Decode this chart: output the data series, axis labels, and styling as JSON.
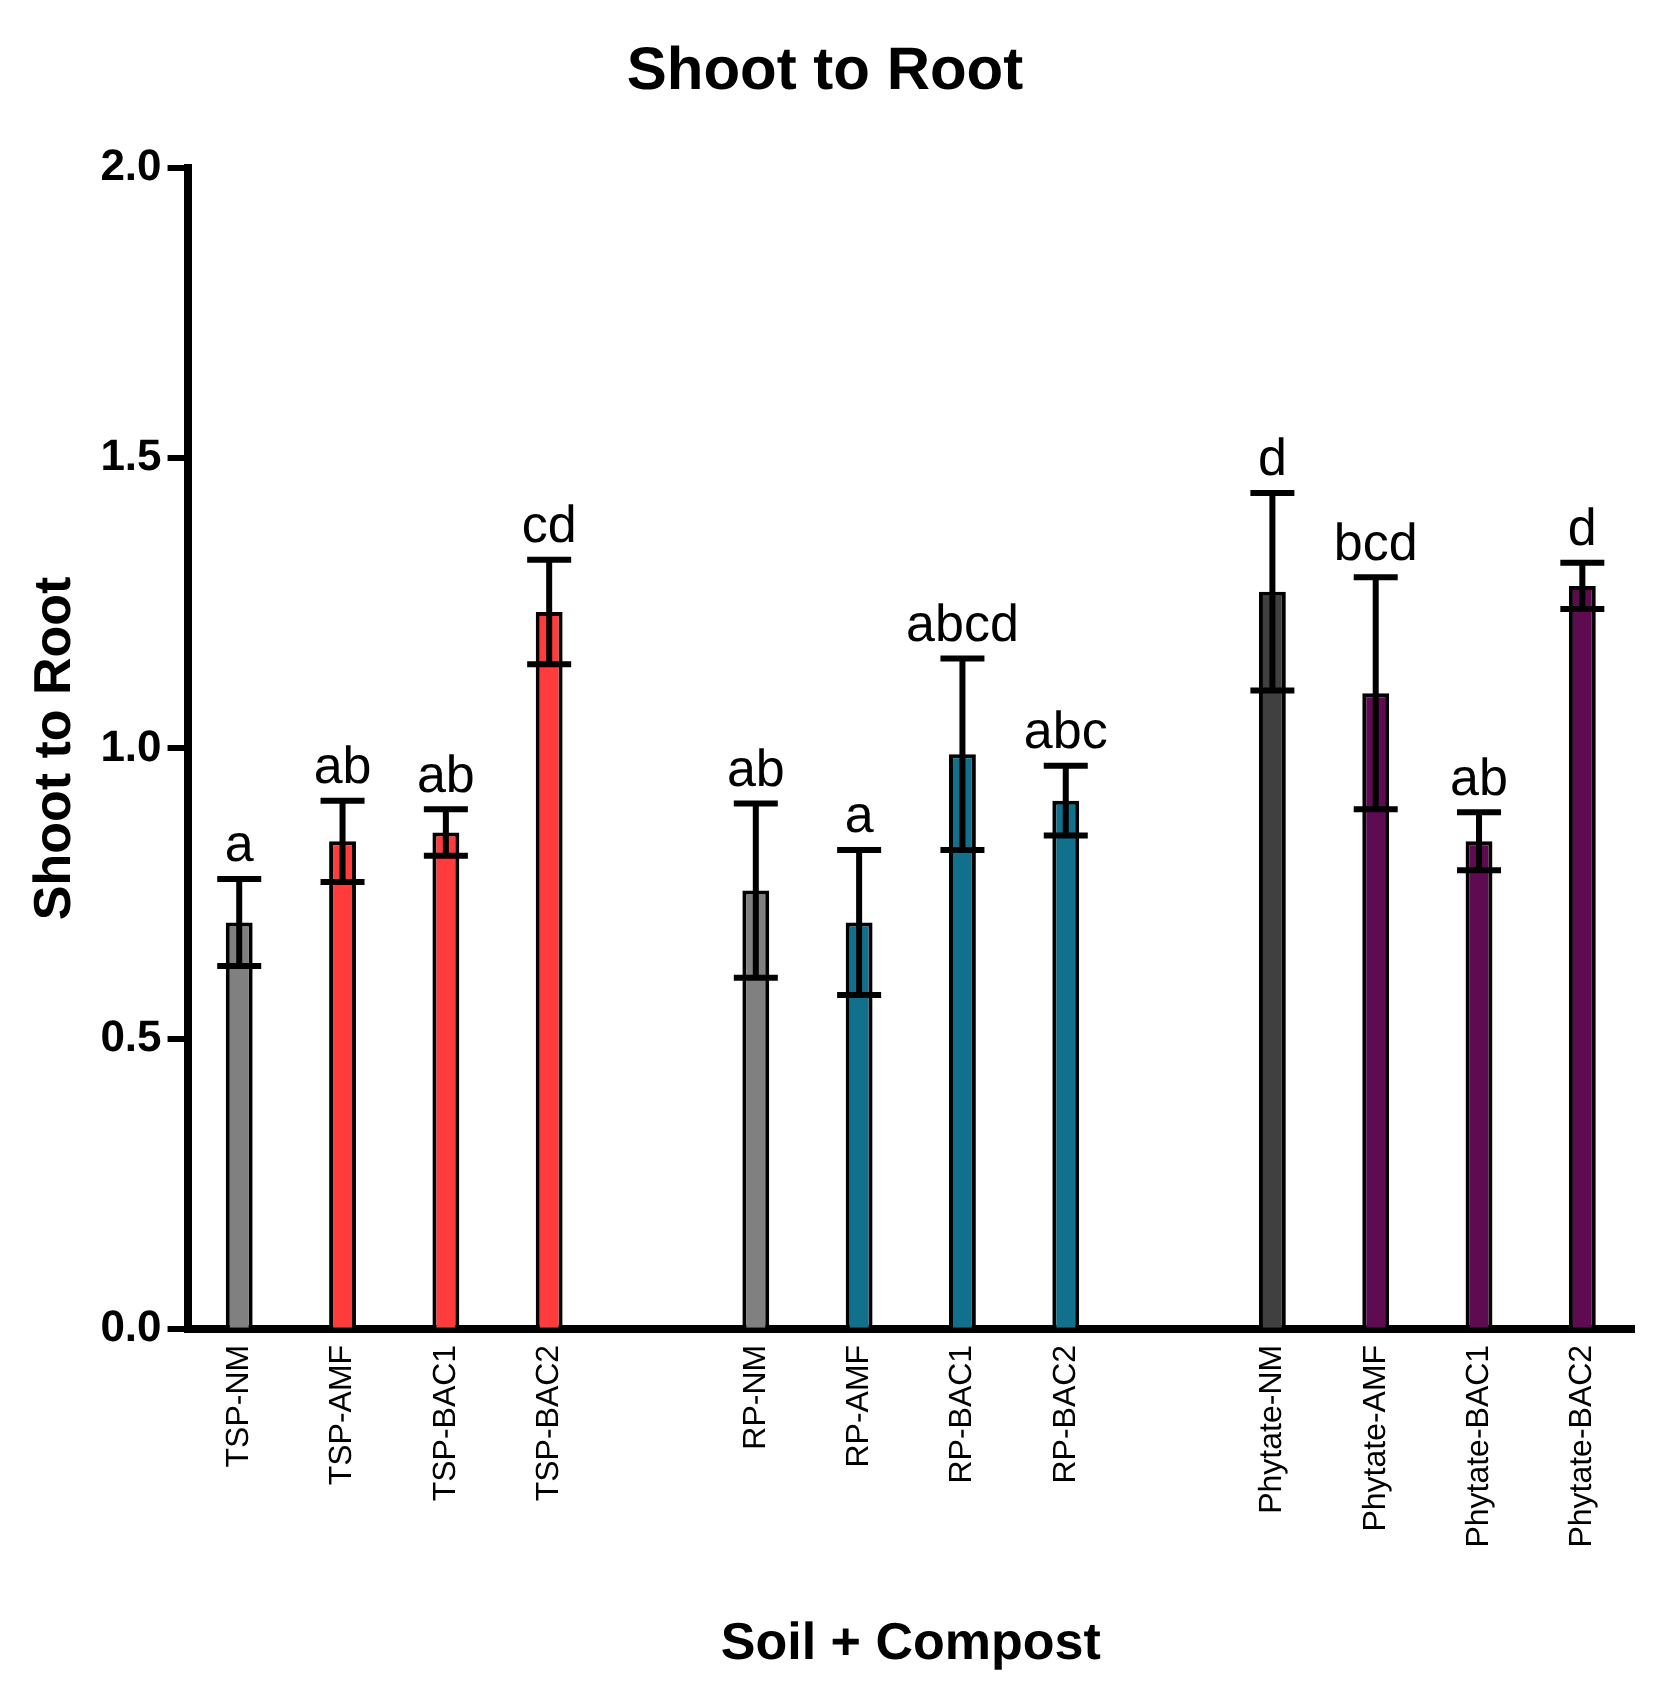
{
  "chart_data": {
    "type": "bar",
    "title": "Shoot to Root",
    "xlabel": "Soil + Compost",
    "ylabel": "Shoot to Root",
    "categories": [
      "TSP-NM",
      "TSP-AMF",
      "TSP-BAC1",
      "TSP-BAC2",
      null,
      "RP-NM",
      "RP-AMF",
      "RP-BAC1",
      "RP-BAC2",
      null,
      "Phytate-NM",
      "Phytate-AMF",
      "Phytate-BAC1",
      "Phytate-BAC2"
    ],
    "values": [
      0.7,
      0.84,
      0.855,
      1.235,
      null,
      0.755,
      0.7,
      0.99,
      0.91,
      null,
      1.27,
      1.095,
      0.84,
      1.28
    ],
    "errors": [
      0.075,
      0.07,
      0.04,
      0.09,
      null,
      0.15,
      0.125,
      0.165,
      0.06,
      null,
      0.17,
      0.2,
      0.05,
      0.04
    ],
    "colors": [
      "#808080",
      "#ff3b3b",
      "#ff3b3b",
      "#ff3b3b",
      null,
      "#808080",
      "#11718c",
      "#11718c",
      "#11718c",
      null,
      "#404040",
      "#5e0b52",
      "#5e0b52",
      "#5e0b52"
    ],
    "ylim": [
      0,
      2
    ],
    "yticks": [
      {
        "value": 0,
        "label": "0.0"
      },
      {
        "value": 0.5,
        "label": "0.5"
      },
      {
        "value": 1,
        "label": "1.0"
      },
      {
        "value": 1.5,
        "label": "1.5"
      },
      {
        "value": 2,
        "label": "2.0"
      }
    ],
    "grid": false,
    "annotations": [
      {
        "text": "a",
        "x": "TSP-NM",
        "y": 0.775
      },
      {
        "text": "ab",
        "x": "TSP-AMF",
        "y": 0.91
      },
      {
        "text": "ab",
        "x": "TSP-BAC1",
        "y": 0.895
      },
      {
        "text": "cd",
        "x": "TSP-BAC2",
        "y": 1.325
      },
      {
        "text": "ab",
        "x": "RP-NM",
        "y": 0.905
      },
      {
        "text": "a",
        "x": "RP-AMF",
        "y": 0.825
      },
      {
        "text": "abcd",
        "x": "RP-BAC1",
        "y": 1.155
      },
      {
        "text": "abc",
        "x": "RP-BAC2",
        "y": 0.97
      },
      {
        "text": "d",
        "x": "Phytate-NM",
        "y": 1.44
      },
      {
        "text": "bcd",
        "x": "Phytate-AMF",
        "y": 1.295
      },
      {
        "text": "ab",
        "x": "Phytate-BAC1",
        "y": 0.89
      },
      {
        "text": "d",
        "x": "Phytate-BAC2",
        "y": 1.32
      }
    ]
  }
}
